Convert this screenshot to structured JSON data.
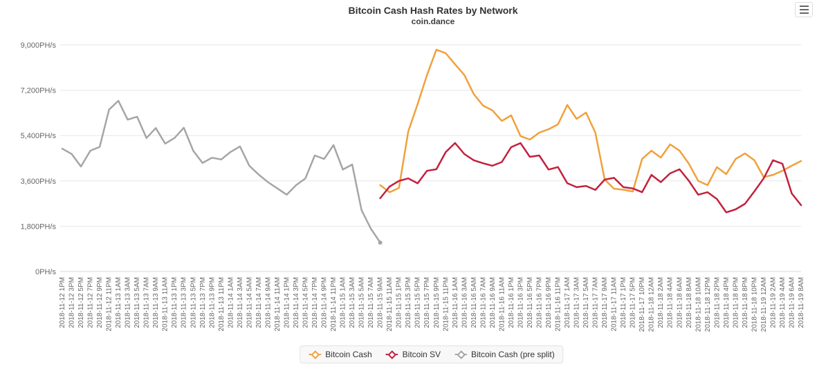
{
  "header": {
    "title": "Bitcoin Cash Hash Rates by Network",
    "subtitle": "coin.dance"
  },
  "colors": {
    "bitcoin_cash": "#f0a03c",
    "bitcoin_sv": "#c2203d",
    "pre_split": "#a5a5a5",
    "grid": "#e6e6e6",
    "axis_line": "#d8d8d8",
    "axis_text": "#666666",
    "title_text": "#333333"
  },
  "legend": {
    "items": [
      {
        "label": "Bitcoin Cash",
        "color": "#f0a03c"
      },
      {
        "label": "Bitcoin SV",
        "color": "#c2203d"
      },
      {
        "label": "Bitcoin Cash (pre split)",
        "color": "#a5a5a5"
      }
    ]
  },
  "chart_data": {
    "type": "line",
    "title": "Bitcoin Cash Hash Rates by Network",
    "subtitle": "coin.dance",
    "ylabel": "PH/s",
    "ylim": [
      0,
      9000
    ],
    "yticks": [
      0,
      1800,
      3600,
      5400,
      7200,
      9000
    ],
    "ytick_labels": [
      "0PH/s",
      "1,800PH/s",
      "3,600PH/s",
      "5,400PH/s",
      "7,200PH/s",
      "9,000PH/s"
    ],
    "grid": true,
    "legend_position": "bottom-center",
    "categories": [
      "2018-11-12 1PM",
      "2018-11-12 3PM",
      "2018-11-12 5PM",
      "2018-11-12 7PM",
      "2018-11-12 9PM",
      "2018-11-12 11PM",
      "2018-11-13 1AM",
      "2018-11-13 3AM",
      "2018-11-13 5AM",
      "2018-11-13 7AM",
      "2018-11-13 9AM",
      "2018-11-13 11AM",
      "2018-11-13 1PM",
      "2018-11-13 3PM",
      "2018-11-13 5PM",
      "2018-11-13 7PM",
      "2018-11-13 9PM",
      "2018-11-13 11PM",
      "2018-11-14 1AM",
      "2018-11-14 3AM",
      "2018-11-14 5AM",
      "2018-11-14 7AM",
      "2018-11-14 9AM",
      "2018-11-14 11AM",
      "2018-11-14 1PM",
      "2018-11-14 3PM",
      "2018-11-14 5PM",
      "2018-11-14 7PM",
      "2018-11-14 9PM",
      "2018-11-14 11PM",
      "2018-11-15 1AM",
      "2018-11-15 3AM",
      "2018-11-15 5AM",
      "2018-11-15 7AM",
      "2018-11-15 9AM",
      "2018-11-15 11AM",
      "2018-11-15 1PM",
      "2018-11-15 3PM",
      "2018-11-15 5PM",
      "2018-11-15 7PM",
      "2018-11-15 9PM",
      "2018-11-15 11PM",
      "2018-11-16 1AM",
      "2018-11-16 3AM",
      "2018-11-16 5AM",
      "2018-11-16 7AM",
      "2018-11-16 9AM",
      "2018-11-16 11AM",
      "2018-11-16 1PM",
      "2018-11-16 3PM",
      "2018-11-16 5PM",
      "2018-11-16 7PM",
      "2018-11-16 9PM",
      "2018-11-16 11PM",
      "2018-11-17 1AM",
      "2018-11-17 3AM",
      "2018-11-17 5AM",
      "2018-11-17 7AM",
      "2018-11-17 9AM",
      "2018-11-17 11AM",
      "2018-11-17 1PM",
      "2018-11-17 5PM",
      "2018-11-17 10PM",
      "2018-11-18 12AM",
      "2018-11-18 2AM",
      "2018-11-18 4AM",
      "2018-11-18 6AM",
      "2018-11-18 8AM",
      "2018-11-18 10AM",
      "2018-11-18 12PM",
      "2018-11-18 2PM",
      "2018-11-18 4PM",
      "2018-11-18 6PM",
      "2018-11-18 8PM",
      "2018-11-18 10PM",
      "2018-11-19 12AM",
      "2018-11-19 2AM",
      "2018-11-19 4AM",
      "2018-11-19 6AM",
      "2018-11-19 8AM"
    ],
    "series": [
      {
        "name": "Bitcoin Cash",
        "color": "#f0a03c",
        "values": [
          null,
          null,
          null,
          null,
          null,
          null,
          null,
          null,
          null,
          null,
          null,
          null,
          null,
          null,
          null,
          null,
          null,
          null,
          null,
          null,
          null,
          null,
          null,
          null,
          null,
          null,
          null,
          null,
          null,
          null,
          null,
          null,
          null,
          null,
          3430,
          3150,
          3320,
          5570,
          6650,
          7800,
          8810,
          8670,
          8230,
          7800,
          7050,
          6585,
          6400,
          5980,
          6200,
          5380,
          5240,
          5515,
          5650,
          5845,
          6615,
          6065,
          6310,
          5515,
          3650,
          3290,
          3250,
          3180,
          4470,
          4800,
          4525,
          5050,
          4800,
          4280,
          3600,
          3430,
          4145,
          3870,
          4470,
          4690,
          4420,
          3750,
          3840,
          4000,
          4200,
          4390
        ]
      },
      {
        "name": "Bitcoin SV",
        "color": "#c2203d",
        "values": [
          null,
          null,
          null,
          null,
          null,
          null,
          null,
          null,
          null,
          null,
          null,
          null,
          null,
          null,
          null,
          null,
          null,
          null,
          null,
          null,
          null,
          null,
          null,
          null,
          null,
          null,
          null,
          null,
          null,
          null,
          null,
          null,
          null,
          null,
          2910,
          3375,
          3600,
          3700,
          3500,
          4000,
          4060,
          4745,
          5105,
          4665,
          4420,
          4300,
          4200,
          4350,
          4940,
          5100,
          4555,
          4610,
          4050,
          4150,
          3510,
          3350,
          3400,
          3240,
          3650,
          3720,
          3350,
          3300,
          3150,
          3840,
          3550,
          3900,
          4060,
          3600,
          3050,
          3150,
          2880,
          2350,
          2470,
          2690,
          3180,
          3700,
          4420,
          4280,
          3100,
          2635
        ]
      },
      {
        "name": "Bitcoin Cash (pre split)",
        "color": "#a5a5a5",
        "values": [
          4880,
          4670,
          4170,
          4800,
          4950,
          6430,
          6780,
          6030,
          6150,
          5300,
          5700,
          5080,
          5300,
          5710,
          4800,
          4310,
          4520,
          4450,
          4750,
          4970,
          4200,
          3850,
          3550,
          3300,
          3050,
          3430,
          3700,
          4610,
          4470,
          5020,
          4050,
          4250,
          2440,
          1700,
          1150,
          null,
          null,
          null,
          null,
          null,
          null,
          null,
          null,
          null,
          null,
          null,
          null,
          null,
          null,
          null,
          null,
          null,
          null,
          null,
          null,
          null,
          null,
          null,
          null,
          null,
          null,
          null,
          null,
          null,
          null,
          null,
          null,
          null,
          null,
          null,
          null,
          null,
          null,
          null,
          null,
          null,
          null,
          null,
          null,
          null
        ]
      }
    ]
  }
}
